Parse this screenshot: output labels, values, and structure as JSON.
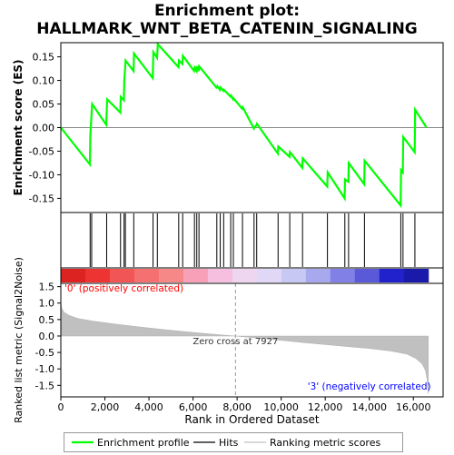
{
  "title_line1": "Enrichment plot:",
  "title_line2": "HALLMARK_WNT_BETA_CATENIN_SIGNALING",
  "chart_data": {
    "type": "line",
    "top_panel": {
      "ylabel": "Enrichment score (ES)",
      "ylim": [
        -0.18,
        0.18
      ],
      "yticks": [
        -0.15,
        -0.1,
        -0.05,
        0.0,
        0.05,
        0.1,
        0.15
      ],
      "ytick_labels": [
        "-0.15",
        "-0.10",
        "-0.05",
        "0.00",
        "0.05",
        "0.10",
        "0.15"
      ],
      "series": [
        {
          "name": "Enrichment profile",
          "color": "#00ff00",
          "x": [
            0,
            1320,
            1340,
            1420,
            2060,
            2100,
            2700,
            2720,
            2860,
            2880,
            2940,
            3300,
            3320,
            4170,
            4200,
            4370,
            4400,
            5340,
            5360,
            5520,
            5540,
            6050,
            6080,
            6160,
            6180,
            6260,
            6280,
            7060,
            7100,
            7220,
            7250,
            7380,
            7400,
            7700,
            7720,
            7820,
            7840,
            8230,
            8260,
            8760,
            8780,
            8880,
            8900,
            9850,
            9870,
            10380,
            10400,
            10960,
            10980,
            12090,
            12110,
            12880,
            12900,
            13050,
            13070,
            13770,
            13790,
            15420,
            15440,
            15520,
            15540,
            16060,
            16080,
            16600
          ],
          "y": [
            0.0,
            -0.078,
            -0.015,
            0.05,
            0.006,
            0.06,
            0.032,
            0.065,
            0.058,
            0.1,
            0.142,
            0.12,
            0.157,
            0.105,
            0.16,
            0.148,
            0.177,
            0.128,
            0.142,
            0.135,
            0.152,
            0.12,
            0.127,
            0.12,
            0.13,
            0.12,
            0.13,
            0.085,
            0.088,
            0.08,
            0.085,
            0.078,
            0.08,
            0.066,
            0.068,
            0.06,
            0.062,
            0.04,
            0.043,
            -0.002,
            0.0,
            0.005,
            0.008,
            -0.055,
            -0.04,
            -0.062,
            -0.052,
            -0.085,
            -0.065,
            -0.125,
            -0.095,
            -0.15,
            -0.11,
            -0.115,
            -0.075,
            -0.12,
            -0.07,
            -0.165,
            -0.09,
            -0.095,
            -0.02,
            -0.052,
            0.038,
            0.0
          ]
        }
      ]
    },
    "hits_x": [
      1330,
      1400,
      2080,
      2710,
      2870,
      2930,
      3310,
      4185,
      4380,
      5350,
      5530,
      6065,
      6170,
      6270,
      7080,
      7235,
      7390,
      7710,
      7830,
      8245,
      8770,
      8890,
      9860,
      10390,
      10970,
      12100,
      12890,
      13060,
      13780,
      15430,
      15530,
      16070
    ],
    "bottom_panel": {
      "ylabel": "Ranked list metric (Signal2Noise)",
      "ylim": [
        -1.85,
        1.6
      ],
      "yticks": [
        -1.5,
        -1.0,
        -0.5,
        0.0,
        0.5,
        1.0,
        1.5
      ],
      "ytick_labels": [
        "-1.5",
        "-1.0",
        "-0.5",
        "0.0",
        "0.5",
        "1.0",
        "1.5"
      ],
      "metric_curve": {
        "rank": [
          0,
          40,
          150,
          400,
          800,
          1500,
          2500,
          3500,
          4500,
          5500,
          6500,
          7500,
          7927,
          9000,
          10000,
          11000,
          12000,
          13000,
          14000,
          15000,
          15700,
          16100,
          16400,
          16550,
          16620,
          16650,
          16680
        ],
        "value": [
          1.05,
          0.85,
          0.72,
          0.62,
          0.53,
          0.45,
          0.36,
          0.28,
          0.21,
          0.14,
          0.08,
          0.02,
          0.0,
          -0.07,
          -0.13,
          -0.2,
          -0.26,
          -0.32,
          -0.38,
          -0.46,
          -0.55,
          -0.68,
          -0.85,
          -1.05,
          -1.3,
          -1.55,
          -1.75
        ]
      },
      "zero_cross_label": "Zero cross at 7927",
      "zero_cross_rank": 7927,
      "pos_label": "'0' (positively correlated)",
      "neg_label": "'3' (negatively correlated)",
      "pos_label_color": "#ff0000",
      "neg_label_color": "#0000ff"
    },
    "xlabel": "Rank in Ordered Dataset",
    "xlim": [
      0,
      17350
    ],
    "xticks": [
      0,
      2000,
      4000,
      6000,
      8000,
      10000,
      12000,
      14000,
      16000
    ],
    "xtick_labels": [
      "0",
      "2,000",
      "4,000",
      "6,000",
      "8,000",
      "10,000",
      "12,000",
      "14,000",
      "16,000"
    ],
    "n_ranks": 16680,
    "heat_colors": [
      "#dd2222",
      "#ee3333",
      "#f25555",
      "#f57070",
      "#f78888",
      "#f8a0b8",
      "#f6bfe0",
      "#efd6f0",
      "#e0d8f6",
      "#c8c8f4",
      "#a8a8ee",
      "#8080e6",
      "#5a5ad8",
      "#2222cc",
      "#1a1aaa"
    ],
    "legend": [
      {
        "name": "Enrichment profile",
        "color": "#00ff00"
      },
      {
        "name": "Hits",
        "color": "#000000"
      },
      {
        "name": "Ranking metric scores",
        "color": "#c0c0c0"
      }
    ]
  }
}
